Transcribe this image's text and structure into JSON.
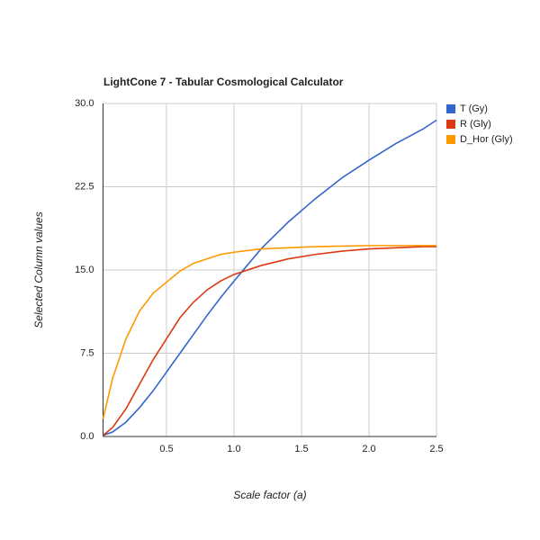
{
  "chart_data": {
    "type": "line",
    "title": "LightCone 7 - Tabular Cosmological Calculator",
    "x_label": "Scale factor (a)",
    "y_label": "Selected Column values",
    "x": [
      0.03,
      0.1,
      0.2,
      0.3,
      0.4,
      0.5,
      0.6,
      0.7,
      0.8,
      0.9,
      1.0,
      1.2,
      1.4,
      1.6,
      1.8,
      2.0,
      2.2,
      2.4,
      2.5
    ],
    "series": [
      {
        "name": "T (Gy)",
        "color": "#3366cc",
        "values": [
          0.1,
          0.4,
          1.3,
          2.6,
          4.1,
          5.8,
          7.5,
          9.2,
          10.9,
          12.5,
          14.0,
          16.9,
          19.3,
          21.4,
          23.3,
          24.9,
          26.4,
          27.7,
          28.5
        ]
      },
      {
        "name": "R (Gly)",
        "color": "#dc3912",
        "values": [
          0.1,
          0.8,
          2.5,
          4.7,
          6.9,
          8.8,
          10.7,
          12.1,
          13.2,
          14.0,
          14.6,
          15.4,
          16.0,
          16.4,
          16.7,
          16.9,
          17.0,
          17.1,
          17.1
        ]
      },
      {
        "name": "D_Hor (Gly)",
        "color": "#ff9900",
        "values": [
          1.6,
          5.2,
          8.8,
          11.3,
          12.9,
          13.9,
          14.9,
          15.6,
          16.0,
          16.4,
          16.6,
          16.9,
          17.0,
          17.1,
          17.15,
          17.2,
          17.2,
          17.2,
          17.2
        ]
      }
    ],
    "xlim": [
      0.03,
      2.5
    ],
    "xticks": [
      0.5,
      {
        "value": 1,
        "label": "1.0"
      },
      1.5,
      {
        "value": 2,
        "label": "2.0"
      },
      2.5
    ],
    "ylim": [
      0,
      30
    ],
    "yticks": [
      {
        "value": 0,
        "label": "0.0"
      },
      7.5,
      {
        "value": 15,
        "label": "15.0"
      },
      22.5,
      {
        "value": 30,
        "label": "30.0"
      }
    ],
    "grid": true,
    "legend": "right"
  }
}
